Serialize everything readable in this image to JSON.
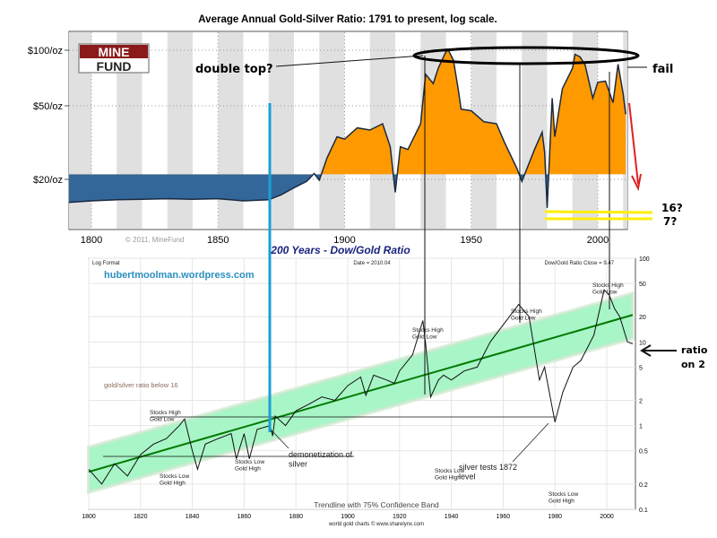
{
  "chart_data": [
    {
      "type": "area",
      "title": "Average Annual Gold-Silver Ratio: 1791 to present, log scale.",
      "xlabel": "",
      "ylabel": "",
      "y_scale": "log",
      "xlim": [
        1791,
        2011
      ],
      "ylim": [
        10.5,
        125
      ],
      "baseline": 21.3,
      "x_ticks": [
        "1800",
        "1850",
        "1900",
        "1950",
        "2000"
      ],
      "y_ticks": [
        {
          "value": 100,
          "label": "$100/oz"
        },
        {
          "value": 50,
          "label": "$50/oz"
        },
        {
          "value": 20,
          "label": "$20/oz"
        }
      ],
      "grid": true,
      "colors": {
        "below": "#336699",
        "above": "#ff9900",
        "line": "#1a2a40",
        "band": "#e0e0e0"
      },
      "logo": {
        "line1": "MINE",
        "line2": "FUND"
      },
      "copyright": "© 2011, MineFund",
      "x": [
        1791,
        1800,
        1810,
        1820,
        1830,
        1840,
        1850,
        1860,
        1870,
        1875,
        1880,
        1885,
        1888,
        1890,
        1893,
        1897,
        1900,
        1905,
        1910,
        1915,
        1918,
        1920,
        1922,
        1925,
        1930,
        1932,
        1935,
        1937,
        1940,
        1941,
        1943,
        1945,
        1946,
        1950,
        1955,
        1960,
        1963,
        1968,
        1970,
        1975,
        1978,
        1979,
        1980,
        1982,
        1983,
        1986,
        1990,
        1991,
        1993,
        1995,
        1998,
        2000,
        2003,
        2006,
        2008,
        2010,
        2011
      ],
      "y": [
        15,
        15.3,
        15.5,
        15.6,
        15.7,
        15.6,
        15.7,
        15.3,
        15.5,
        16.5,
        18,
        19.5,
        21.5,
        19.8,
        26,
        34,
        33,
        38,
        37,
        40,
        30,
        17,
        30,
        29,
        40,
        74,
        66,
        80,
        98,
        100,
        88,
        60,
        48,
        47,
        41,
        40,
        32,
        23,
        19.5,
        29,
        36,
        28,
        14,
        55,
        34,
        62,
        80,
        95,
        92,
        83,
        55,
        67,
        68,
        52,
        84,
        58,
        45
      ]
    },
    {
      "type": "line",
      "title": "200 Years - Dow/Gold Ratio",
      "xlabel": "",
      "ylabel": "",
      "y_scale": "log",
      "xlim": [
        1800,
        2010
      ],
      "ylim": [
        0.1,
        100
      ],
      "x_ticks": [
        "1800",
        "1820",
        "1840",
        "1860",
        "1880",
        "1900",
        "1920",
        "1940",
        "1960",
        "1980",
        "2000"
      ],
      "y_ticks": [
        "100",
        "50",
        "20",
        "10",
        "5",
        "2",
        "1",
        "0.5",
        "0.2",
        "0.1"
      ],
      "grid": true,
      "header_left": "Log Format",
      "header_center": "Date = 2010.04",
      "header_right": "Dow/Gold Ratio Close = 9.47",
      "watermark": "hubertmoolman.wordpress.com",
      "footer": "Trendline with 75% Confidence Band",
      "source": "world gold charts © www.sharelynx.com",
      "trendline": {
        "x": [
          1800,
          2010
        ],
        "y": [
          0.28,
          21
        ]
      },
      "band": {
        "upper": [
          0.55,
          38
        ],
        "lower": [
          0.16,
          11
        ]
      },
      "colors": {
        "line": "#111111",
        "trend": "#007a00",
        "band": "#a8f5c8"
      },
      "x": [
        1800,
        1805,
        1810,
        1815,
        1820,
        1825,
        1830,
        1835,
        1837,
        1840,
        1842,
        1845,
        1850,
        1855,
        1857,
        1860,
        1862,
        1865,
        1870,
        1871,
        1872,
        1876,
        1880,
        1885,
        1890,
        1895,
        1900,
        1905,
        1907,
        1910,
        1915,
        1918,
        1920,
        1925,
        1929,
        1930,
        1932,
        1935,
        1937,
        1940,
        1945,
        1950,
        1955,
        1960,
        1966,
        1970,
        1974,
        1976,
        1980,
        1983,
        1987,
        1990,
        1995,
        1999,
        2001,
        2003,
        2005,
        2008,
        2010
      ],
      "y": [
        0.3,
        0.2,
        0.35,
        0.25,
        0.45,
        0.6,
        0.7,
        1.0,
        1.2,
        0.5,
        0.3,
        0.6,
        0.7,
        0.8,
        0.4,
        0.8,
        0.4,
        0.9,
        1.0,
        0.75,
        1.3,
        1.0,
        1.5,
        1.8,
        2.2,
        2.0,
        3,
        3.8,
        2.3,
        4,
        3.5,
        3.2,
        4.5,
        7,
        18,
        10,
        2.2,
        3.5,
        4,
        3.5,
        4.5,
        5,
        10,
        16,
        28,
        20,
        3.5,
        5,
        1.1,
        2.5,
        5,
        6,
        12,
        42,
        36,
        25,
        20,
        10,
        9.5
      ],
      "labels": {
        "stocks_high_gold_low": "Stocks High\nGold Low",
        "stocks_low_gold_high": "Stocks Low\nGold High",
        "gold_silver_below_16": "gold/silver ratio below 16",
        "demonetization": "demonetization of\nsilver",
        "silver_tests": "silver tests 1872\nlevel"
      }
    }
  ],
  "annotations": {
    "double_top": "double top?",
    "fail": "fail",
    "q16": "16?",
    "q7": "7?",
    "ratio_note": "ratio\non 2"
  }
}
